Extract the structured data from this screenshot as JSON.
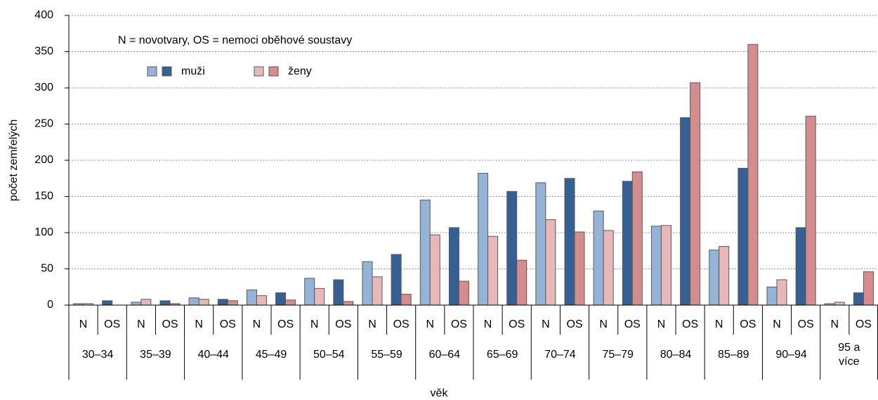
{
  "chart_data": {
    "type": "grouped-bar",
    "annotation": "N = novotvary, OS = nemoci oběhové soustavy",
    "x_label": "věk",
    "y_label": "počet zemřelých",
    "categories": [
      "30–34",
      "35–39",
      "40–44",
      "45–49",
      "50–54",
      "55–59",
      "60–64",
      "65–69",
      "70–74",
      "75–79",
      "80–84",
      "85–89",
      "90–94",
      "95 a více"
    ],
    "subcategories": [
      "N",
      "OS"
    ],
    "series": [
      {
        "name": "muži",
        "colors": [
          "#95b3d7",
          "#366092"
        ],
        "values": [
          [
            2,
            6
          ],
          [
            4,
            6
          ],
          [
            10,
            8
          ],
          [
            21,
            17
          ],
          [
            37,
            35
          ],
          [
            60,
            70
          ],
          [
            145,
            107
          ],
          [
            182,
            157
          ],
          [
            169,
            175
          ],
          [
            130,
            171
          ],
          [
            109,
            259
          ],
          [
            76,
            189
          ],
          [
            25,
            107
          ],
          [
            2,
            17
          ]
        ]
      },
      {
        "name": "ženy",
        "colors": [
          "#e6b9b8",
          "#d48d8c"
        ],
        "values": [
          [
            2,
            0
          ],
          [
            8,
            2
          ],
          [
            8,
            6
          ],
          [
            13,
            7
          ],
          [
            23,
            5
          ],
          [
            39,
            15
          ],
          [
            97,
            33
          ],
          [
            95,
            62
          ],
          [
            118,
            101
          ],
          [
            103,
            184
          ],
          [
            110,
            307
          ],
          [
            81,
            360
          ],
          [
            35,
            261
          ],
          [
            4,
            46
          ]
        ]
      }
    ],
    "ylim": [
      0,
      400
    ],
    "yticks": [
      0,
      50,
      100,
      150,
      200,
      250,
      300,
      350,
      400
    ],
    "grid": true
  }
}
